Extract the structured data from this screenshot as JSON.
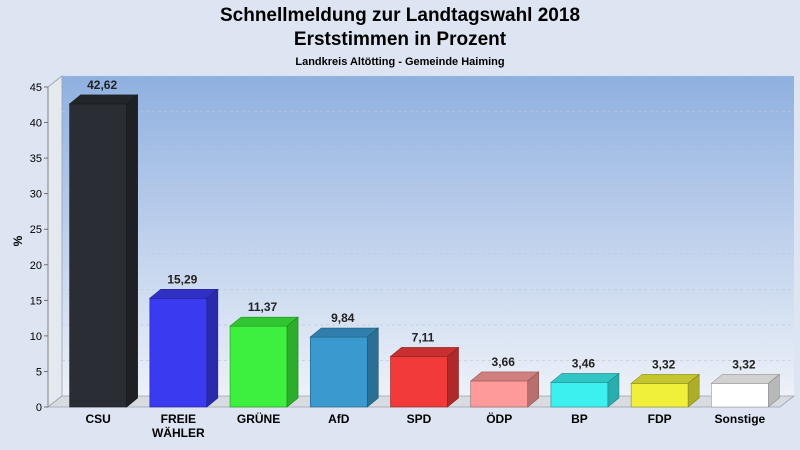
{
  "chart_data": {
    "type": "bar",
    "title": "Schnellmeldung zur Landtagswahl 2018",
    "title2": "Erststimmen in Prozent",
    "subtitle": "Landkreis Altötting - Gemeinde Haiming",
    "ylabel": "%",
    "ylim": [
      0,
      45
    ],
    "yticks": [
      0,
      5,
      10,
      15,
      20,
      25,
      30,
      35,
      40,
      45
    ],
    "grid": true,
    "categories": [
      "CSU",
      "FREIE WÄHLER",
      "GRÜNE",
      "AfD",
      "SPD",
      "ÖDP",
      "BP",
      "FDP",
      "Sonstige"
    ],
    "category_lines": [
      [
        "CSU"
      ],
      [
        "FREIE",
        "WÄHLER"
      ],
      [
        "GRÜNE"
      ],
      [
        "AfD"
      ],
      [
        "SPD"
      ],
      [
        "ÖDP"
      ],
      [
        "BP"
      ],
      [
        "FDP"
      ],
      [
        "Sonstige"
      ]
    ],
    "values": [
      42.62,
      15.29,
      11.37,
      9.84,
      7.11,
      3.66,
      3.46,
      3.32,
      3.32
    ],
    "value_labels": [
      "42,62",
      "15,29",
      "11,37",
      "9,84",
      "7,11",
      "3,66",
      "3,46",
      "3,32",
      "3,32"
    ],
    "colors": [
      "#2a2d33",
      "#3a3af0",
      "#3df03d",
      "#3a9ad0",
      "#f23a3a",
      "#ff9a9a",
      "#3cf0f0",
      "#f0f03a",
      "#ffffff"
    ]
  }
}
